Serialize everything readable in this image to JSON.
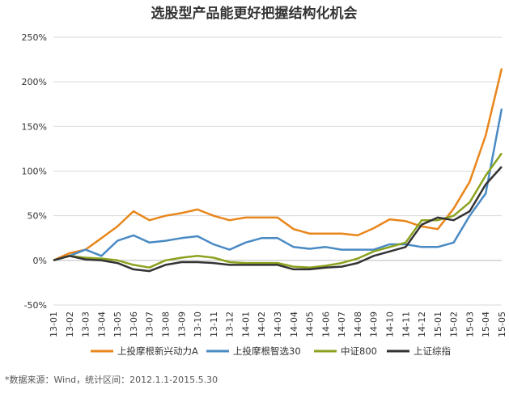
{
  "chart_data": {
    "type": "line",
    "title": "选股型产品能更好把握结构化机会",
    "xlabel": "",
    "ylabel": "",
    "ylim": [
      -50,
      250
    ],
    "yticks": [
      "-50%",
      "0%",
      "50%",
      "100%",
      "150%",
      "200%",
      "250%"
    ],
    "x": [
      "13-01",
      "13-02",
      "13-03",
      "13-04",
      "13-05",
      "13-06",
      "13-07",
      "13-08",
      "13-09",
      "13-10",
      "13-11",
      "13-12",
      "14-01",
      "14-02",
      "14-03",
      "14-04",
      "14-05",
      "14-06",
      "14-07",
      "14-08",
      "14-09",
      "14-10",
      "14-11",
      "14-12",
      "15-01",
      "15-02",
      "15-03",
      "15-04",
      "15-05"
    ],
    "grid": true,
    "legend_position": "bottom",
    "series": [
      {
        "name": "上投摩根新兴动力A",
        "color": "#e8861a",
        "values": [
          0,
          8,
          12,
          25,
          38,
          55,
          45,
          50,
          53,
          57,
          50,
          45,
          48,
          48,
          48,
          35,
          30,
          30,
          30,
          28,
          36,
          46,
          44,
          38,
          35,
          58,
          88,
          140,
          215
        ]
      },
      {
        "name": "上投摩根智选30",
        "color": "#4a8ac4",
        "values": [
          0,
          5,
          12,
          5,
          22,
          28,
          20,
          22,
          25,
          27,
          18,
          12,
          20,
          25,
          25,
          15,
          13,
          15,
          12,
          12,
          12,
          18,
          18,
          15,
          15,
          20,
          50,
          75,
          170
        ]
      },
      {
        "name": "中证800",
        "color": "#8aa31f",
        "values": [
          0,
          5,
          3,
          2,
          0,
          -5,
          -8,
          0,
          3,
          5,
          3,
          -2,
          -3,
          -3,
          -3,
          -7,
          -8,
          -6,
          -3,
          2,
          10,
          15,
          20,
          45,
          45,
          50,
          65,
          95,
          120
        ]
      },
      {
        "name": "上证综指",
        "color": "#333333",
        "values": [
          0,
          5,
          1,
          0,
          -3,
          -10,
          -12,
          -5,
          -2,
          -2,
          -3,
          -5,
          -5,
          -5,
          -5,
          -10,
          -10,
          -8,
          -7,
          -3,
          5,
          10,
          15,
          40,
          48,
          45,
          55,
          85,
          105
        ]
      }
    ]
  },
  "source_note": "*数据来源：Wind，统计区间：2012.1.1-2015.5.30"
}
